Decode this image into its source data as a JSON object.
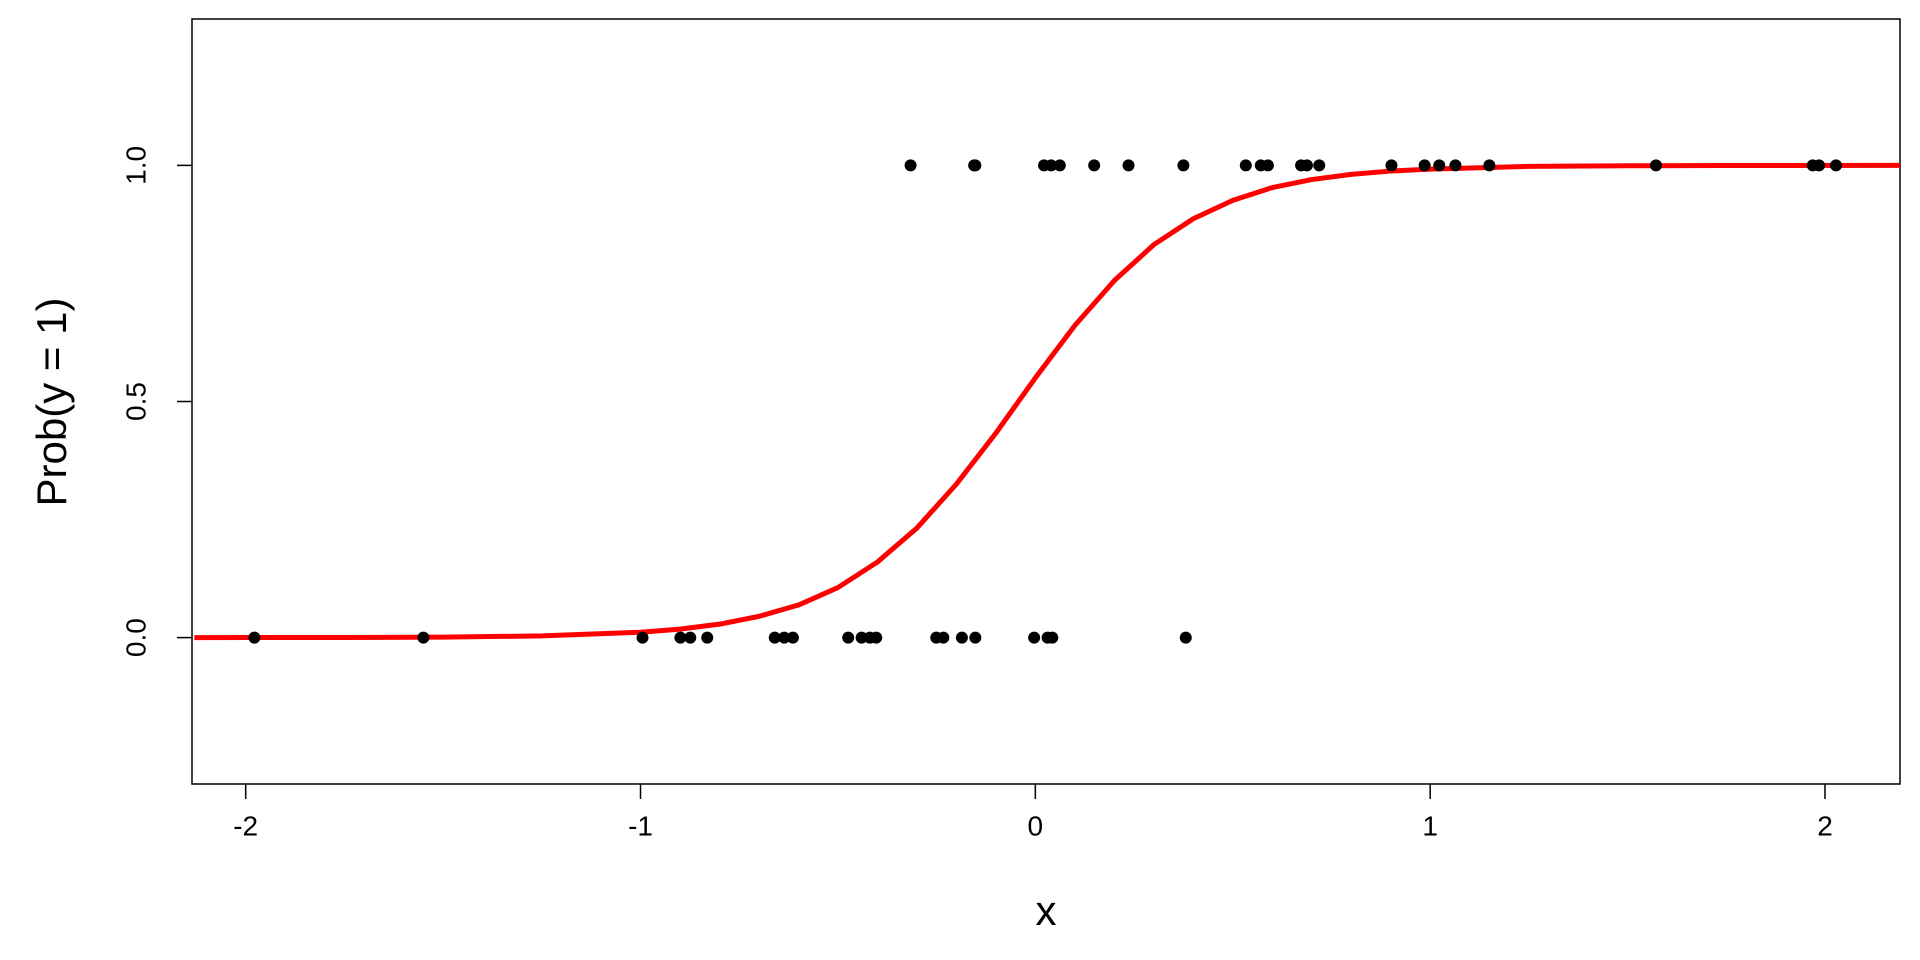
{
  "chart_data": {
    "type": "scatter",
    "xlabel": "x",
    "ylabel": "Prob(y = 1)",
    "xlim": [
      -2.136,
      2.19
    ],
    "ylim": [
      -0.31,
      1.31
    ],
    "xticks": [
      -2,
      -1,
      0,
      1,
      2
    ],
    "yticks": [
      {
        "value": 0,
        "label": "0.0"
      },
      {
        "value": 0.5,
        "label": "0.5"
      },
      {
        "value": 1,
        "label": "1.0"
      }
    ],
    "series": [
      {
        "type": "scatter",
        "color": "#000000",
        "x": [
          -0.316,
          -0.155,
          -0.152,
          0.022,
          0.04,
          0.062,
          0.149,
          0.236,
          0.375,
          0.533,
          0.571,
          0.589,
          0.673,
          0.688,
          0.719,
          0.902,
          0.986,
          1.023,
          1.064,
          1.15,
          1.572,
          1.969,
          1.985,
          2.028,
          -1.978,
          -1.55,
          -0.995,
          -0.899,
          -0.874,
          -0.831,
          -0.66,
          -0.636,
          -0.614,
          -0.474,
          -0.44,
          -0.419,
          -0.403,
          -0.251,
          -0.233,
          -0.186,
          -0.152,
          -0.003,
          0.031,
          0.043,
          0.381
        ],
        "values": [
          1,
          1,
          1,
          1,
          1,
          1,
          1,
          1,
          1,
          1,
          1,
          1,
          1,
          1,
          1,
          1,
          1,
          1,
          1,
          1,
          1,
          1,
          1,
          1,
          0,
          0,
          0,
          0,
          0,
          0,
          0,
          0,
          0,
          0,
          0,
          0,
          0,
          0,
          0,
          0,
          0,
          0,
          0,
          0,
          0
        ]
      },
      {
        "type": "line",
        "color": "#ff0000",
        "x": [
          -2.13,
          -1.75,
          -1.5,
          -1.25,
          -1,
          -0.9,
          -0.8,
          -0.7,
          -0.6,
          -0.5,
          -0.4,
          -0.3,
          -0.2,
          -0.1,
          0,
          0.1,
          0.2,
          0.3,
          0.4,
          0.5,
          0.6,
          0.7,
          0.8,
          0.9,
          1,
          1.25,
          1.5,
          1.75,
          2.19
        ],
        "values": [
          0.0001,
          0.0003,
          0.0011,
          0.0036,
          0.0114,
          0.018,
          0.0285,
          0.045,
          0.069,
          0.106,
          0.16,
          0.232,
          0.325,
          0.433,
          0.55,
          0.661,
          0.756,
          0.832,
          0.887,
          0.926,
          0.953,
          0.97,
          0.981,
          0.988,
          0.992,
          0.998,
          0.9992,
          0.9998,
          1.0
        ]
      }
    ]
  }
}
